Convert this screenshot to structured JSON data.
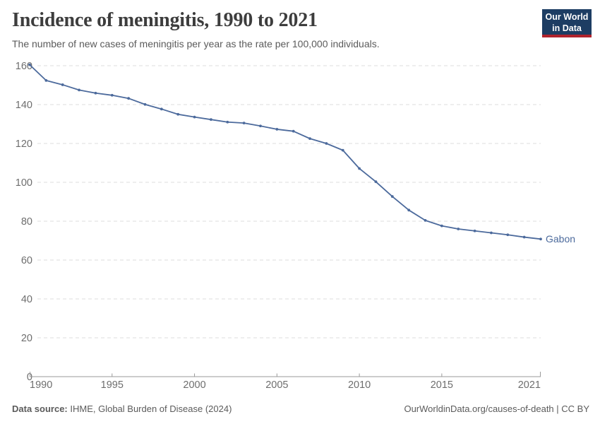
{
  "header": {
    "logo": {
      "line1": "Our World",
      "line2": "in Data",
      "bg_color": "#1d3d63",
      "accent_color": "#b0232d"
    }
  },
  "chart_data": {
    "type": "line",
    "title": "Incidence of meningitis, 1990 to 2021",
    "subtitle": "The number of new cases of meningitis per year as the rate per 100,000 individuals.",
    "x": [
      1990,
      1991,
      1992,
      1993,
      1994,
      1995,
      1996,
      1997,
      1998,
      1999,
      2000,
      2001,
      2002,
      2003,
      2004,
      2005,
      2006,
      2007,
      2008,
      2009,
      2010,
      2011,
      2012,
      2013,
      2014,
      2015,
      2016,
      2017,
      2018,
      2019,
      2020,
      2021
    ],
    "series": [
      {
        "name": "Gabon",
        "color": "#4C6A9C",
        "values": [
          160.5,
          152.4,
          150.2,
          147.5,
          145.9,
          144.8,
          143.2,
          140.1,
          137.7,
          135.0,
          133.6,
          132.3,
          131.0,
          130.5,
          129.0,
          127.3,
          126.3,
          122.5,
          120.0,
          116.5,
          107.1,
          100.3,
          92.7,
          85.7,
          80.4,
          77.6,
          76.0,
          75.0,
          74.0,
          73.0,
          71.8,
          70.8
        ]
      }
    ],
    "xlabel": "",
    "ylabel": "",
    "xlim": [
      1990,
      2021
    ],
    "ylim": [
      0,
      160
    ],
    "x_ticks": [
      1990,
      1995,
      2000,
      2005,
      2010,
      2015,
      2021
    ],
    "y_ticks": [
      0,
      20,
      40,
      60,
      80,
      100,
      120,
      140,
      160
    ],
    "grid": "horizontal-dashed",
    "legend_position": "line-end-label",
    "colors": {
      "grid": "#dcdcdc",
      "axis": "#9a9a9a",
      "tick_text": "#6e6e6e"
    }
  },
  "footer": {
    "source_label": "Data source:",
    "source_text": " IHME, Global Burden of Disease (2024)",
    "credit": "OurWorldinData.org/causes-of-death | CC BY"
  }
}
